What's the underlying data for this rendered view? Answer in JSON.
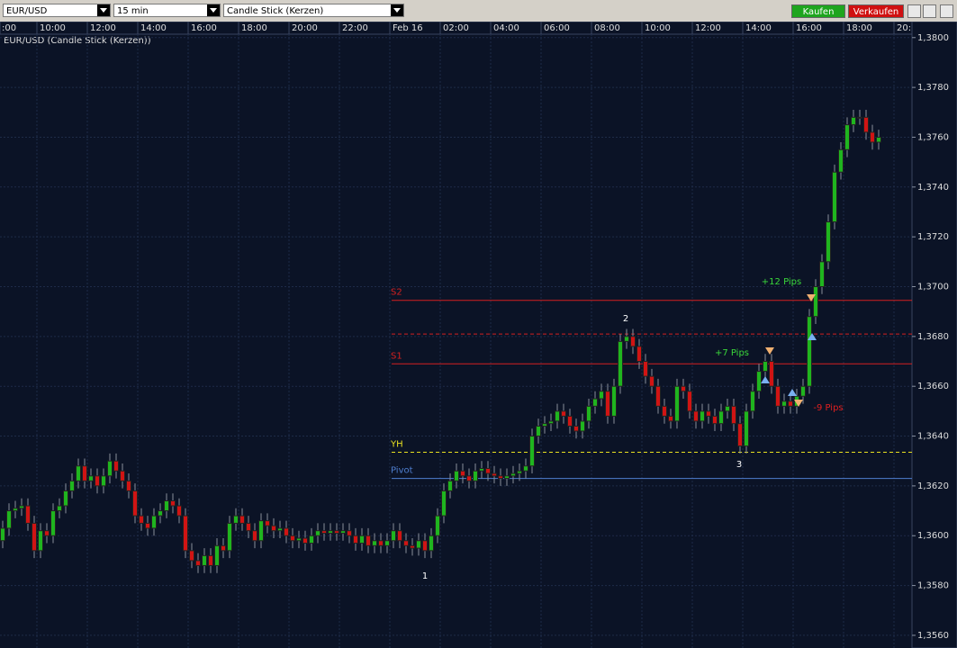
{
  "toolbar": {
    "symbol": "EUR/USD",
    "interval": "15 min",
    "chart_type": "Candle Stick (Kerzen)",
    "buy": "Kaufen",
    "sell": "Verkaufen"
  },
  "chart_data": {
    "type": "candlestick",
    "title": "EUR/USD (Candle Stick (Kerzen))",
    "up_color": "#1fb51f",
    "down_color": "#d01414",
    "grid": true,
    "xtick_labels": [
      ":00",
      "10:00",
      "12:00",
      "14:00",
      "16:00",
      "18:00",
      "20:00",
      "22:00",
      "Feb 16",
      "02:00",
      "04:00",
      "06:00",
      "08:00",
      "10:00",
      "12:00",
      "14:00",
      "16:00",
      "18:00",
      "20:"
    ],
    "ylim": [
      1.3556,
      1.3801
    ],
    "yticks": [
      {
        "value": 1.356,
        "label": "1,3560"
      },
      {
        "value": 1.358,
        "label": "1,3580"
      },
      {
        "value": 1.36,
        "label": "1,3600"
      },
      {
        "value": 1.362,
        "label": "1,3620"
      },
      {
        "value": 1.364,
        "label": "1,3640"
      },
      {
        "value": 1.366,
        "label": "1,3660"
      },
      {
        "value": 1.368,
        "label": "1,3680"
      },
      {
        "value": 1.37,
        "label": "1,3700"
      },
      {
        "value": 1.372,
        "label": "1,3720"
      },
      {
        "value": 1.374,
        "label": "1,3740"
      },
      {
        "value": 1.376,
        "label": "1,3760"
      },
      {
        "value": 1.378,
        "label": "1,3780"
      },
      {
        "value": 1.38,
        "label": "1,3800"
      }
    ],
    "open": [
      1.3598,
      1.3603,
      1.361,
      1.3611,
      1.3612,
      1.3605,
      1.3594,
      1.3602,
      1.36,
      1.361,
      1.3612,
      1.3618,
      1.3622,
      1.3628,
      1.3622,
      1.3624,
      1.362,
      1.3624,
      1.363,
      1.3626,
      1.3622,
      1.3618,
      1.3608,
      1.3605,
      1.3603,
      1.3608,
      1.361,
      1.3614,
      1.3612,
      1.3608,
      1.3594,
      1.359,
      1.3588,
      1.3592,
      1.3588,
      1.3596,
      1.3594,
      1.3605,
      1.3608,
      1.3605,
      1.3602,
      1.3598,
      1.3606,
      1.3604,
      1.3602,
      1.3603,
      1.36,
      1.3598,
      1.3599,
      1.3597,
      1.36,
      1.3602,
      1.3601,
      1.3602,
      1.3601,
      1.3602,
      1.36,
      1.3597,
      1.36,
      1.3596,
      1.3598,
      1.3596,
      1.3598,
      1.3602,
      1.3598,
      1.3596,
      1.3595,
      1.3598,
      1.3594,
      1.36,
      1.3608,
      1.3618,
      1.3622,
      1.3626,
      1.3624,
      1.3622,
      1.3626,
      1.3627,
      1.3625,
      1.3624,
      1.3623,
      1.3624,
      1.3625,
      1.3626,
      1.3628,
      1.364,
      1.3644,
      1.3645,
      1.3646,
      1.365,
      1.3648,
      1.3644,
      1.3642,
      1.3646,
      1.3652,
      1.3655,
      1.3658,
      1.3648,
      1.366,
      1.3678,
      1.368,
      1.3676,
      1.367,
      1.3664,
      1.366,
      1.3652,
      1.3648,
      1.3646,
      1.366,
      1.3658,
      1.365,
      1.3646,
      1.365,
      1.3648,
      1.3645,
      1.365,
      1.3652,
      1.3645,
      1.3636,
      1.365,
      1.3658,
      1.3666,
      1.367,
      1.366,
      1.3652,
      1.3654,
      1.3652,
      1.3656,
      1.366,
      1.3688,
      1.37,
      1.371,
      1.3726,
      1.3746,
      1.3755,
      1.3765,
      1.3768,
      1.3768,
      1.3762,
      1.3758
    ],
    "high": [
      1.3606,
      1.3613,
      1.3614,
      1.3615,
      1.3615,
      1.3608,
      1.3605,
      1.3605,
      1.3613,
      1.3615,
      1.3621,
      1.3625,
      1.3631,
      1.3631,
      1.3627,
      1.3627,
      1.3627,
      1.3633,
      1.3633,
      1.3629,
      1.3625,
      1.3621,
      1.3611,
      1.3608,
      1.3611,
      1.3613,
      1.3617,
      1.3617,
      1.3615,
      1.3611,
      1.3597,
      1.3593,
      1.3595,
      1.3595,
      1.3599,
      1.3599,
      1.3608,
      1.3611,
      1.3611,
      1.3608,
      1.3605,
      1.3609,
      1.3609,
      1.3607,
      1.3606,
      1.3606,
      1.3603,
      1.3602,
      1.3602,
      1.3603,
      1.3605,
      1.3605,
      1.3605,
      1.3605,
      1.3605,
      1.3605,
      1.3603,
      1.3603,
      1.3603,
      1.3601,
      1.3601,
      1.3601,
      1.3605,
      1.3605,
      1.3601,
      1.3599,
      1.3601,
      1.3601,
      1.3603,
      1.3611,
      1.3621,
      1.3625,
      1.3629,
      1.3629,
      1.3627,
      1.3629,
      1.363,
      1.363,
      1.3628,
      1.3627,
      1.3627,
      1.3628,
      1.3629,
      1.3631,
      1.3643,
      1.3647,
      1.3648,
      1.3649,
      1.3653,
      1.3653,
      1.3651,
      1.3647,
      1.3649,
      1.3655,
      1.3658,
      1.3661,
      1.3661,
      1.3663,
      1.3681,
      1.3683,
      1.3683,
      1.3679,
      1.3673,
      1.3667,
      1.3663,
      1.3655,
      1.3651,
      1.3663,
      1.3663,
      1.3661,
      1.3653,
      1.3653,
      1.3653,
      1.3651,
      1.3653,
      1.3655,
      1.3655,
      1.3648,
      1.3653,
      1.3661,
      1.3669,
      1.3673,
      1.3673,
      1.3663,
      1.3657,
      1.3657,
      1.3659,
      1.3663,
      1.3691,
      1.3703,
      1.3713,
      1.3729,
      1.3749,
      1.3758,
      1.3768,
      1.3771,
      1.3771,
      1.3771,
      1.3765,
      1.3763
    ],
    "low": [
      1.3595,
      1.36,
      1.3607,
      1.3608,
      1.3602,
      1.3591,
      1.3591,
      1.3597,
      1.3597,
      1.3607,
      1.3609,
      1.3615,
      1.3619,
      1.3619,
      1.3619,
      1.3617,
      1.3617,
      1.3621,
      1.3623,
      1.3619,
      1.3615,
      1.3605,
      1.3602,
      1.36,
      1.36,
      1.3605,
      1.3607,
      1.3609,
      1.3605,
      1.3591,
      1.3587,
      1.3585,
      1.3585,
      1.3585,
      1.3585,
      1.3591,
      1.3591,
      1.3602,
      1.3602,
      1.3599,
      1.3595,
      1.3595,
      1.3601,
      1.3599,
      1.3599,
      1.3597,
      1.3595,
      1.3595,
      1.3594,
      1.3594,
      1.3597,
      1.3598,
      1.3598,
      1.3598,
      1.3598,
      1.3597,
      1.3594,
      1.3594,
      1.3593,
      1.3593,
      1.3593,
      1.3593,
      1.3595,
      1.3595,
      1.3593,
      1.3592,
      1.3592,
      1.3591,
      1.3591,
      1.3597,
      1.3605,
      1.3615,
      1.3619,
      1.3621,
      1.3619,
      1.3619,
      1.3623,
      1.3622,
      1.3621,
      1.362,
      1.362,
      1.3621,
      1.3622,
      1.3623,
      1.3625,
      1.3637,
      1.3641,
      1.3642,
      1.3643,
      1.3645,
      1.3641,
      1.3639,
      1.3639,
      1.3643,
      1.3649,
      1.3652,
      1.3645,
      1.3645,
      1.3657,
      1.3675,
      1.3673,
      1.3667,
      1.3661,
      1.3657,
      1.3649,
      1.3645,
      1.3643,
      1.3643,
      1.3655,
      1.3647,
      1.3643,
      1.3643,
      1.3645,
      1.3642,
      1.3642,
      1.3647,
      1.3642,
      1.3633,
      1.3633,
      1.3647,
      1.3655,
      1.3663,
      1.3657,
      1.3649,
      1.3649,
      1.3649,
      1.3649,
      1.3653,
      1.3657,
      1.3685,
      1.3697,
      1.3707,
      1.3723,
      1.3743,
      1.3752,
      1.3762,
      1.3765,
      1.3759,
      1.3755,
      1.3755
    ],
    "close": [
      1.3603,
      1.361,
      1.3611,
      1.3612,
      1.3605,
      1.3594,
      1.3602,
      1.36,
      1.361,
      1.3612,
      1.3618,
      1.3622,
      1.3628,
      1.3622,
      1.3624,
      1.362,
      1.3624,
      1.363,
      1.3626,
      1.3622,
      1.3618,
      1.3608,
      1.3605,
      1.3603,
      1.3608,
      1.361,
      1.3614,
      1.3612,
      1.3608,
      1.3594,
      1.359,
      1.3588,
      1.3592,
      1.3588,
      1.3596,
      1.3594,
      1.3605,
      1.3608,
      1.3605,
      1.3602,
      1.3598,
      1.3606,
      1.3604,
      1.3602,
      1.3603,
      1.36,
      1.3598,
      1.3599,
      1.3597,
      1.36,
      1.3602,
      1.3601,
      1.3602,
      1.3601,
      1.3602,
      1.36,
      1.3597,
      1.36,
      1.3596,
      1.3598,
      1.3596,
      1.3598,
      1.3602,
      1.3598,
      1.3596,
      1.3595,
      1.3598,
      1.3594,
      1.36,
      1.3608,
      1.3618,
      1.3622,
      1.3626,
      1.3624,
      1.3622,
      1.3626,
      1.3627,
      1.3625,
      1.3624,
      1.3623,
      1.3624,
      1.3625,
      1.3626,
      1.3628,
      1.364,
      1.3644,
      1.3645,
      1.3646,
      1.365,
      1.3648,
      1.3644,
      1.3642,
      1.3646,
      1.3652,
      1.3655,
      1.3658,
      1.3648,
      1.366,
      1.3678,
      1.368,
      1.3676,
      1.367,
      1.3664,
      1.366,
      1.3652,
      1.3648,
      1.3646,
      1.366,
      1.3658,
      1.365,
      1.3646,
      1.365,
      1.3648,
      1.3645,
      1.365,
      1.3652,
      1.3645,
      1.3636,
      1.365,
      1.3658,
      1.3666,
      1.367,
      1.366,
      1.3652,
      1.3654,
      1.3652,
      1.3656,
      1.366,
      1.3688,
      1.37,
      1.371,
      1.3726,
      1.3746,
      1.3755,
      1.3765,
      1.3768,
      1.3768,
      1.3762,
      1.3758,
      1.376
    ],
    "levels": [
      {
        "name": "S2",
        "value": 1.36945,
        "color": "#d42020",
        "dashed": false
      },
      {
        "value": 1.3681,
        "color": "#d42020",
        "dashed": true
      },
      {
        "name": "S1",
        "value": 1.3669,
        "color": "#d42020",
        "dashed": false
      },
      {
        "name": "YH",
        "value": 1.36335,
        "color": "#e8e020",
        "dashed": true
      },
      {
        "name": "Pivot",
        "value": 1.3623,
        "color": "#4f7fd0",
        "dashed": false
      }
    ],
    "annotations": [
      {
        "text": "1",
        "color": "#ffffff"
      },
      {
        "text": "2",
        "color": "#ffffff"
      },
      {
        "text": "3",
        "color": "#ffffff"
      },
      {
        "text": "+12 Pips",
        "color": "#3ad83a"
      },
      {
        "text": "+7 Pips",
        "color": "#3ad83a"
      },
      {
        "text": "-9 Pips",
        "color": "#e02020"
      }
    ]
  }
}
